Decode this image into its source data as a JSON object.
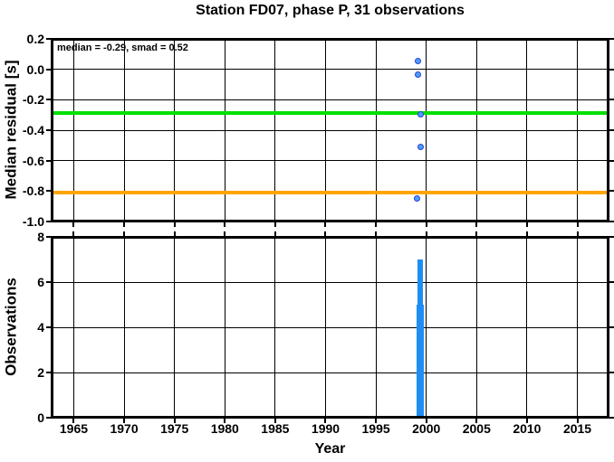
{
  "figure": {
    "title": "Station FD07, phase P, 31 observations",
    "xlabel": "Year",
    "background": "#ffffff",
    "frame_color": "#000000"
  },
  "chart_data": [
    {
      "id": "residual",
      "type": "scatter",
      "ylabel": "Median residual [s]",
      "annotation": "median = -0.29, smad = 0.52",
      "xlim": [
        1962.8,
        2018.1
      ],
      "ylim": [
        -1.0,
        0.2
      ],
      "xtick_values": [
        1965,
        1970,
        1975,
        1980,
        1985,
        1990,
        1995,
        2000,
        2005,
        2010,
        2015
      ],
      "ytick_values": [
        0.2,
        0.0,
        -0.2,
        -0.4,
        -0.6,
        -0.8,
        -1.0
      ],
      "ytick_labels": [
        "0.2",
        "0.0",
        "-0.2",
        "-0.4",
        "-0.6",
        "-0.8",
        "-1.0"
      ],
      "grid": true,
      "legend": "none",
      "hlines": [
        {
          "value": -0.29,
          "color": "#00e000",
          "role": "median-line"
        },
        {
          "value": -0.81,
          "color": "#ffa500",
          "role": "median-minus-smad-line"
        }
      ],
      "points": [
        {
          "year": 1999.2,
          "residual": 0.05
        },
        {
          "year": 1999.2,
          "residual": -0.04
        },
        {
          "year": 1999.45,
          "residual": -0.3
        },
        {
          "year": 1999.5,
          "residual": -0.51
        },
        {
          "year": 1999.15,
          "residual": -0.85
        }
      ],
      "point_style": {
        "fill": "#4d9fff",
        "stroke": "#2a3fd4"
      }
    },
    {
      "id": "observations",
      "type": "bar",
      "ylabel": "Observations",
      "xlim": [
        1962.8,
        2018.1
      ],
      "ylim": [
        0,
        8
      ],
      "xtick_values": [
        1965,
        1970,
        1975,
        1980,
        1985,
        1990,
        1995,
        2000,
        2005,
        2010,
        2015
      ],
      "xtick_labels": [
        "1965",
        "1970",
        "1975",
        "1980",
        "1985",
        "1990",
        "1995",
        "2000",
        "2005",
        "2010",
        "2015"
      ],
      "ytick_values": [
        0,
        2,
        4,
        6,
        8
      ],
      "ytick_labels": [
        "0",
        "2",
        "4",
        "6",
        "8"
      ],
      "grid": true,
      "legend": "none",
      "bars": [
        {
          "year": 1999.4,
          "width_years": 0.68,
          "count": 5
        },
        {
          "year": 1999.4,
          "width_years": 0.5,
          "count": 7
        }
      ],
      "bar_color": "#1e8ef5"
    }
  ]
}
